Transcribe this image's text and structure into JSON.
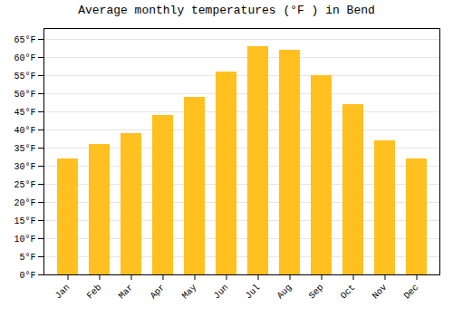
{
  "chart_data": {
    "type": "bar",
    "title": "Average monthly temperatures (°F ) in Bend",
    "categories": [
      "Jan",
      "Feb",
      "Mar",
      "Apr",
      "May",
      "Jun",
      "Jul",
      "Aug",
      "Sep",
      "Oct",
      "Nov",
      "Dec"
    ],
    "values": [
      32,
      36,
      39,
      44,
      49,
      56,
      63,
      62,
      55,
      47,
      37,
      32
    ],
    "color": "#FFC020",
    "ylim": [
      0,
      68
    ],
    "yticks": [
      {
        "value": 0,
        "label": "0°F"
      },
      {
        "value": 5,
        "label": "5°F"
      },
      {
        "value": 10,
        "label": "10°F"
      },
      {
        "value": 15,
        "label": "15°F"
      },
      {
        "value": 20,
        "label": "20°F"
      },
      {
        "value": 25,
        "label": "25°F"
      },
      {
        "value": 30,
        "label": "30°F"
      },
      {
        "value": 35,
        "label": "35°F"
      },
      {
        "value": 40,
        "label": "40°F"
      },
      {
        "value": 45,
        "label": "45°F"
      },
      {
        "value": 50,
        "label": "50°F"
      },
      {
        "value": 55,
        "label": "55°F"
      },
      {
        "value": 60,
        "label": "60°F"
      },
      {
        "value": 65,
        "label": "65°F"
      }
    ],
    "grid": true
  }
}
